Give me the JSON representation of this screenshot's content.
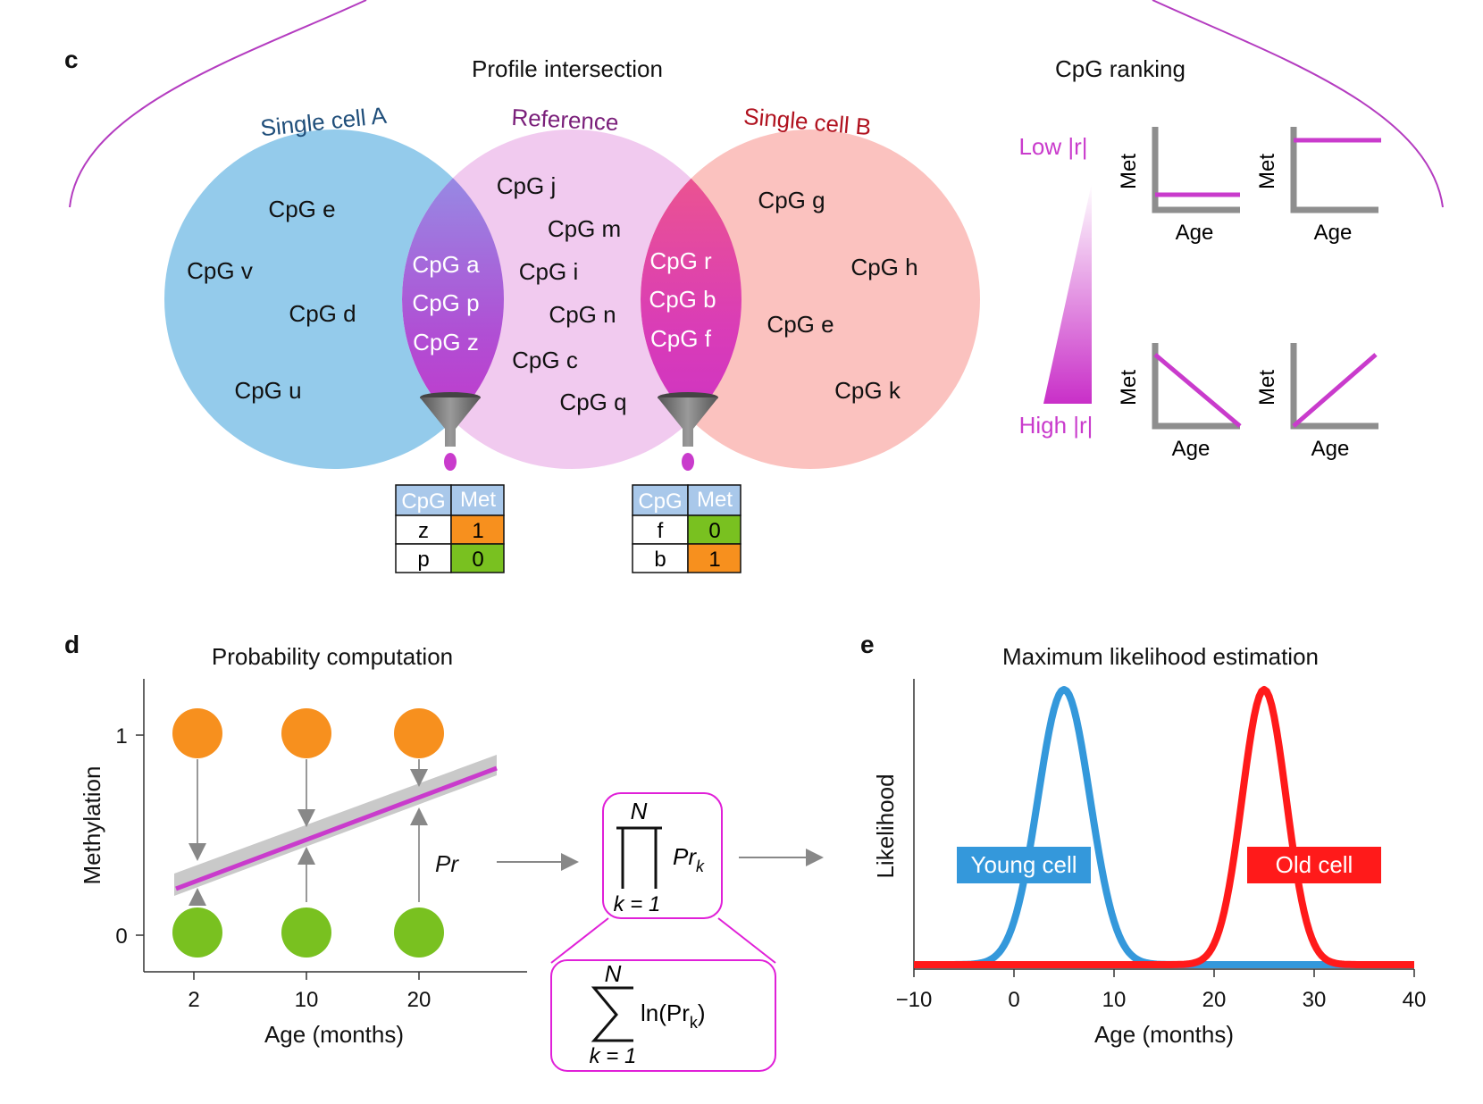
{
  "panels": {
    "c": "c",
    "d": "d",
    "e": "e"
  },
  "panel_c": {
    "title": "Profile intersection",
    "set_a": "Single cell A",
    "set_ref": "Reference",
    "set_b": "Single cell B",
    "only_a": [
      "CpG e",
      "CpG v",
      "CpG d",
      "CpG u"
    ],
    "a_ref": [
      "CpG a",
      "CpG p",
      "CpG z"
    ],
    "only_ref": [
      "CpG j",
      "CpG m",
      "CpG i",
      "CpG n",
      "CpG c",
      "CpG q"
    ],
    "ref_b": [
      "CpG r",
      "CpG b",
      "CpG f"
    ],
    "only_b": [
      "CpG g",
      "CpG h",
      "CpG e",
      "CpG k"
    ],
    "table_headers": [
      "CpG",
      "Met"
    ],
    "table_a": [
      {
        "cpg": "z",
        "met": "1"
      },
      {
        "cpg": "p",
        "met": "0"
      }
    ],
    "table_b": [
      {
        "cpg": "f",
        "met": "0"
      },
      {
        "cpg": "b",
        "met": "1"
      }
    ],
    "colors": {
      "set_a": "#8ec8ea",
      "set_ref": "#f0c7ee",
      "set_b": "#fbbfbc",
      "magenta": "#c93bcc",
      "met1": "#f7901e",
      "met0": "#79c120",
      "header": "#a9c8ea"
    }
  },
  "ranking": {
    "title": "CpG ranking",
    "low": "Low |r|",
    "high": "High |r|",
    "ylabel": "Met",
    "xlabel": "Age"
  },
  "panel_d": {
    "title": "Probability computation",
    "ylabel": "Methylation",
    "xlabel": "Age (months)",
    "xticks": [
      "2",
      "10",
      "20"
    ],
    "yticks": [
      "0",
      "1"
    ],
    "pr_label": "Pr",
    "formula_prod": {
      "top": "N",
      "bottom": "k = 1",
      "term": "Pr",
      "sub": "k"
    },
    "formula_sum": {
      "top": "N",
      "bottom": "k = 1",
      "term": "ln(Pr",
      "sub": "k",
      "close": ")"
    }
  },
  "panel_e": {
    "title": "Maximum likelihood estimation",
    "ylabel": "Likelihood",
    "xlabel": "Age (months)",
    "young": "Young cell",
    "old": "Old cell"
  },
  "chart_data": {
    "type": "line",
    "title": "Maximum likelihood estimation",
    "xlabel": "Age (months)",
    "ylabel": "Likelihood",
    "xlim": [
      -10,
      40
    ],
    "xticks": [
      -10,
      0,
      10,
      20,
      30,
      40
    ],
    "grid": false,
    "series": [
      {
        "name": "Young cell",
        "color": "#3498db",
        "peak_age": 5,
        "sd": 2.6
      },
      {
        "name": "Old cell",
        "color": "#ff1a1a",
        "peak_age": 25,
        "sd": 2.2
      }
    ]
  }
}
